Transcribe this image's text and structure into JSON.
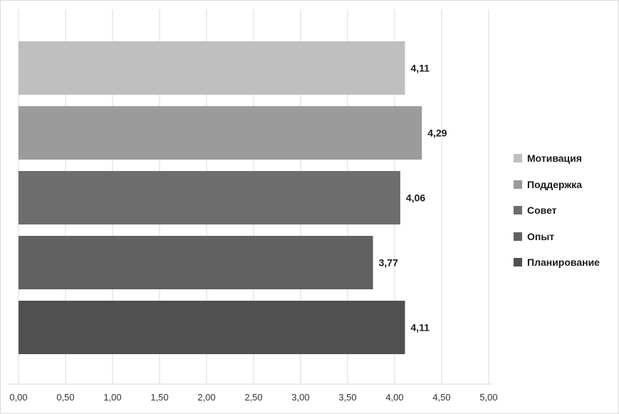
{
  "chart_data": {
    "type": "bar",
    "orientation": "horizontal",
    "categories": [
      "Мотивация",
      "Поддержка",
      "Совет",
      "Опыт",
      "Планирование"
    ],
    "values": [
      4.11,
      4.29,
      4.06,
      3.77,
      4.11
    ],
    "value_labels": [
      "4,11",
      "4,29",
      "4,06",
      "3,77",
      "4,11"
    ],
    "colors": [
      "#bfbfbf",
      "#9b9b9b",
      "#6d6d6d",
      "#616161",
      "#505050"
    ],
    "xlim": [
      0,
      5
    ],
    "x_ticks": [
      "0,00",
      "0,50",
      "1,00",
      "1,50",
      "2,00",
      "2,50",
      "3,00",
      "3,50",
      "4,00",
      "4,50",
      "5,00"
    ],
    "grid": "vertical",
    "legend_position": "right",
    "title": "",
    "xlabel": "",
    "ylabel": ""
  }
}
